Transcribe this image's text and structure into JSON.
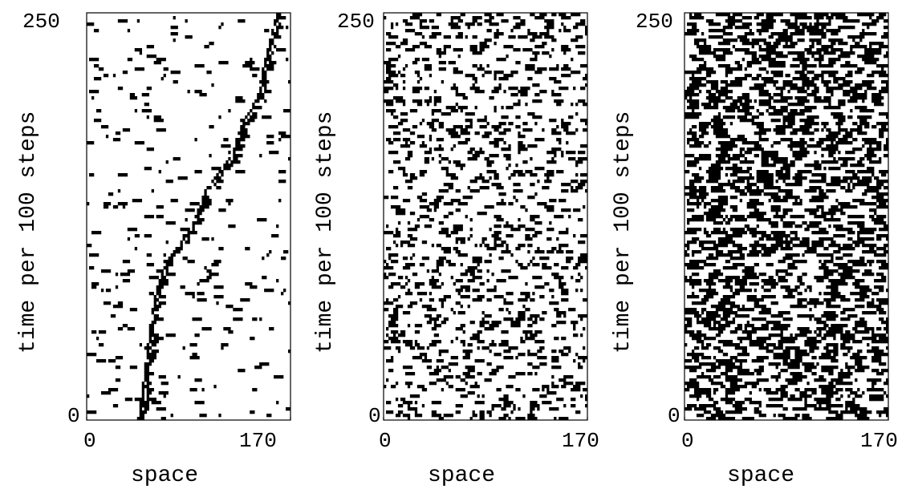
{
  "chart_data": [
    {
      "type": "heatmap",
      "panel": "left",
      "xlabel": "space",
      "ylabel": "time per 100 steps",
      "xlim": [
        0,
        170
      ],
      "ylim": [
        0,
        250
      ],
      "xticks": [
        "0",
        "170"
      ],
      "yticks": [
        "0",
        "250"
      ],
      "colors": {
        "on": "#000000",
        "off": "#ffffff"
      },
      "density": 0.06,
      "seed": 11,
      "trail_x": [
        160,
        150,
        145,
        130,
        120,
        100,
        90,
        80,
        70,
        60,
        55,
        50,
        45
      ],
      "trail_t": [
        250,
        220,
        200,
        180,
        160,
        140,
        120,
        110,
        100,
        80,
        60,
        30,
        0
      ]
    },
    {
      "type": "heatmap",
      "panel": "middle",
      "xlabel": "space",
      "ylabel": "time per 100 steps",
      "xlim": [
        0,
        170
      ],
      "ylim": [
        0,
        250
      ],
      "xticks": [
        "0",
        "170"
      ],
      "yticks": [
        "0",
        "250"
      ],
      "colors": {
        "on": "#000000",
        "off": "#ffffff"
      },
      "density": 0.24,
      "seed": 23
    },
    {
      "type": "heatmap",
      "panel": "right",
      "xlabel": "space",
      "ylabel": "time per 100 steps",
      "xlim": [
        0,
        170
      ],
      "ylim": [
        0,
        250
      ],
      "xticks": [
        "0",
        "170"
      ],
      "yticks": [
        "0",
        "250"
      ],
      "colors": {
        "on": "#000000",
        "off": "#ffffff"
      },
      "density": 0.45,
      "seed": 37
    }
  ]
}
